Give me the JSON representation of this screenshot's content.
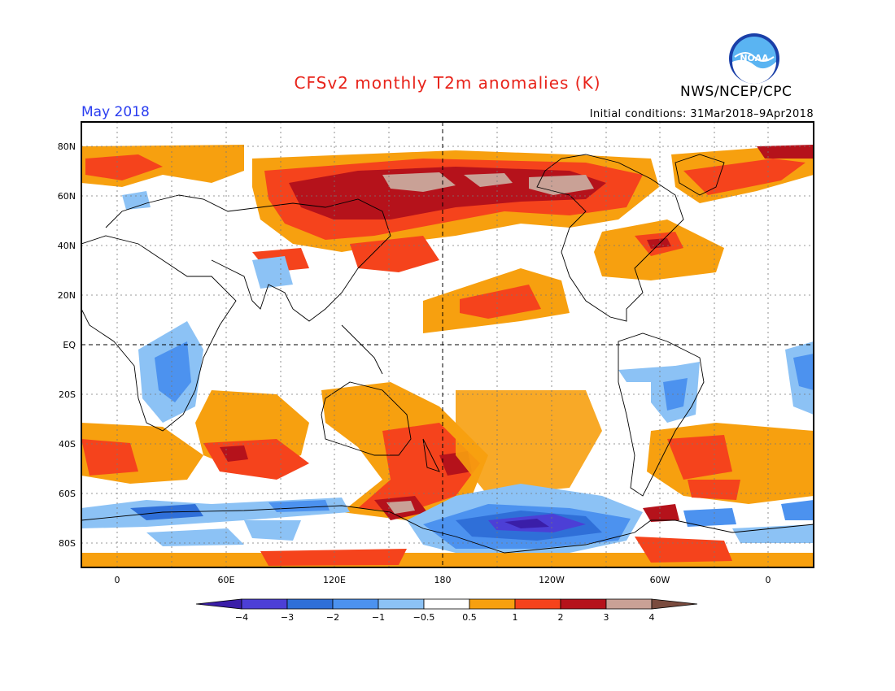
{
  "header": {
    "title": "CFSv2 monthly T2m anomalies (K)",
    "agency": "NWS/NCEP/CPC",
    "period": "May 2018",
    "initial_conditions": "Initial conditions: 31Mar2018–9Apr2018",
    "logo_text": "NOAA"
  },
  "map": {
    "projection": "equirectangular",
    "central_longitude": 180,
    "lat_labels": [
      "80N",
      "60N",
      "40N",
      "20N",
      "EQ",
      "20S",
      "40S",
      "60S",
      "80S"
    ],
    "lon_labels": [
      "0",
      "60E",
      "120E",
      "180",
      "120W",
      "60W",
      "0"
    ],
    "grid": "dotted"
  },
  "colorbar": {
    "tick_labels": [
      "−4",
      "−3",
      "−2",
      "−1",
      "−0.5",
      "0.5",
      "1",
      "2",
      "3",
      "4"
    ],
    "colors": [
      "#3a1ea8",
      "#4c3fd6",
      "#2f6fd8",
      "#4c92ef",
      "#8cc2f5",
      "#ffffff",
      "#f7a00f",
      "#f5431c",
      "#b5121b",
      "#c9a196",
      "#7a4b3e"
    ]
  }
}
